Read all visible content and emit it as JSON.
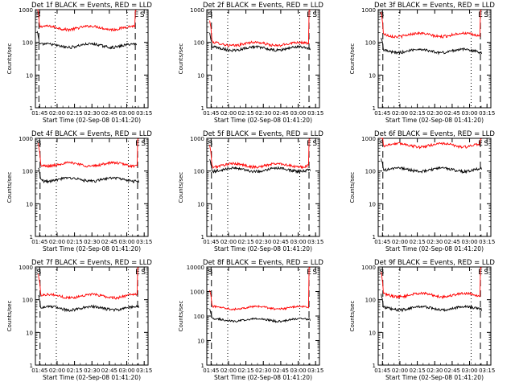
{
  "window": {
    "background": "#ffffff"
  },
  "colors": {
    "events": "#000000",
    "lld": "#ff0000",
    "axis": "#000000"
  },
  "chart_data": {
    "type": "line",
    "layout": "3x3 grid",
    "xlabel": "Start Time (02-Sep-08 01:41:20)",
    "ylabel": "Counts/sec",
    "x_ticks": [
      "01:45",
      "02:00",
      "02:15",
      "02:30",
      "02:45",
      "03:00",
      "03:15"
    ],
    "x_tick_minutes": [
      3.67,
      18.67,
      33.67,
      48.67,
      63.67,
      78.67,
      93.67
    ],
    "x_range_minutes": [
      0,
      97
    ],
    "y_scale": "log",
    "markers": {
      "start_label": "S",
      "end_label": "E"
    },
    "panels": [
      {
        "title": "Det 1f BLACK = Events, RED = LLD",
        "ylim": [
          1,
          1000
        ],
        "y_ticks": [
          "1",
          "10",
          "100",
          "1000"
        ],
        "events_level": 80,
        "lld_level": 280,
        "dashed_minutes": [
          3.0,
          86.0
        ],
        "dotted_minutes": [
          17.0,
          79.0
        ],
        "marker_S_minute": 0.5,
        "marker_E_minute": 85.0,
        "marker_S2_minute": 90.0
      },
      {
        "title": "Det 2f BLACK = Events, RED = LLD",
        "ylim": [
          1,
          1000
        ],
        "y_ticks": [
          "1",
          "10",
          "100",
          "1000"
        ],
        "events_level": 65,
        "lld_level": 90,
        "dashed_minutes": [
          4.0,
          88.0
        ],
        "dotted_minutes": [
          18.0,
          80.0
        ],
        "marker_S_minute": 1.0,
        "marker_E_minute": 86.0,
        "marker_S2_minute": 91.0
      },
      {
        "title": "Det 3f BLACK = Events, RED = LLD",
        "ylim": [
          1,
          1000
        ],
        "y_ticks": [
          "1",
          "10",
          "100",
          "1000"
        ],
        "events_level": 55,
        "lld_level": 170,
        "dashed_minutes": [
          4.0,
          88.0
        ],
        "dotted_minutes": [
          18.0,
          80.0
        ],
        "marker_S_minute": 1.0,
        "marker_E_minute": 86.0,
        "marker_S2_minute": 91.0
      },
      {
        "title": "Det 4f BLACK = Events, RED = LLD",
        "ylim": [
          1,
          1000
        ],
        "y_ticks": [
          "1",
          "10",
          "100",
          "1000"
        ],
        "events_level": 55,
        "lld_level": 160,
        "dashed_minutes": [
          4.0,
          88.0
        ],
        "dotted_minutes": [
          18.0,
          80.0
        ],
        "marker_S_minute": 1.0,
        "marker_E_minute": 86.0,
        "marker_S2_minute": 91.0
      },
      {
        "title": "Det 5f BLACK = Events, RED = LLD",
        "ylim": [
          1,
          1000
        ],
        "y_ticks": [
          "1",
          "10",
          "100",
          "1000"
        ],
        "events_level": 110,
        "lld_level": 150,
        "dashed_minutes": [
          4.0,
          88.0
        ],
        "dotted_minutes": [
          18.0,
          80.0
        ],
        "marker_S_minute": 1.0,
        "marker_E_minute": 86.0,
        "marker_S2_minute": 91.0
      },
      {
        "title": "Det 6f BLACK = Events, RED = LLD",
        "ylim": [
          1,
          1000
        ],
        "y_ticks": [
          "1",
          "10",
          "100",
          "1000"
        ],
        "events_level": 110,
        "lld_level": 620,
        "dashed_minutes": [
          4.0,
          88.0
        ],
        "dotted_minutes": [],
        "marker_S_minute": 1.0,
        "marker_E_minute": 86.0,
        "marker_S2_minute": 91.0
      },
      {
        "title": "Det 7f BLACK = Events, RED = LLD",
        "ylim": [
          1,
          1000
        ],
        "y_ticks": [
          "1",
          "10",
          "100",
          "1000"
        ],
        "events_level": 55,
        "lld_level": 130,
        "dashed_minutes": [
          4.0,
          88.0
        ],
        "dotted_minutes": [
          18.0,
          80.0
        ],
        "marker_S_minute": 1.0,
        "marker_E_minute": 86.0,
        "marker_S2_minute": 91.0
      },
      {
        "title": "Det 8f BLACK = Events, RED = LLD",
        "ylim": [
          1,
          10000
        ],
        "y_ticks": [
          "1",
          "10",
          "100",
          "1000",
          "10000"
        ],
        "events_level": 70,
        "lld_level": 220,
        "dashed_minutes": [
          4.0,
          88.0
        ],
        "dotted_minutes": [
          18.0,
          80.0
        ],
        "marker_S_minute": 1.0,
        "marker_E_minute": 86.0,
        "marker_S2_minute": 91.0
      },
      {
        "title": "Det 9f BLACK = Events, RED = LLD",
        "ylim": [
          1,
          1000
        ],
        "y_ticks": [
          "1",
          "10",
          "100",
          "1000"
        ],
        "events_level": 55,
        "lld_level": 140,
        "dashed_minutes": [
          4.0,
          88.0
        ],
        "dotted_minutes": [
          18.0,
          80.0
        ],
        "marker_S_minute": 1.0,
        "marker_E_minute": 86.0,
        "marker_S2_minute": 91.0
      }
    ]
  }
}
